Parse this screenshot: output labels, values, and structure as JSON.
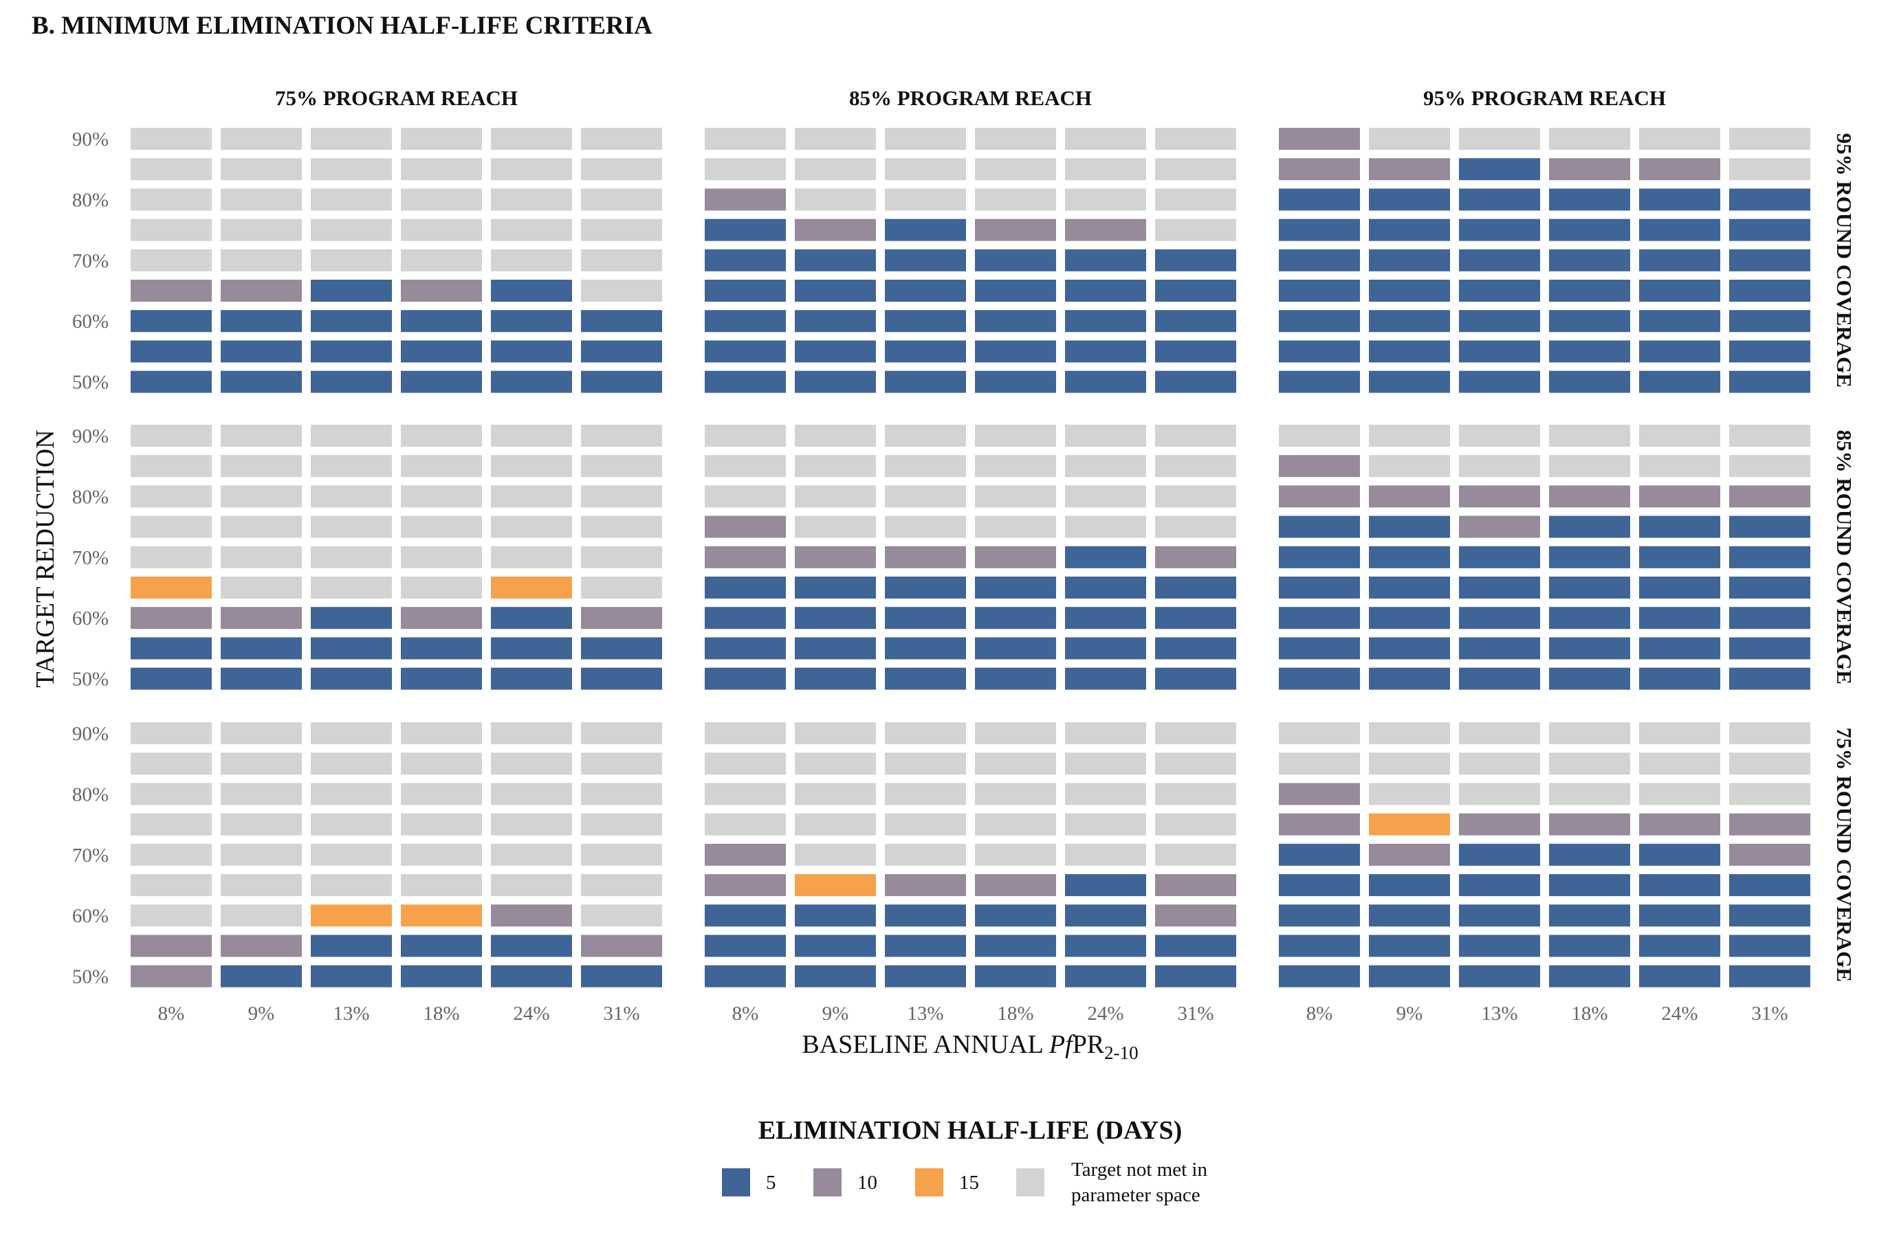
{
  "title": "B.  MINIMUM  ELIMINATION  HALF-LIFE  CRITERIA",
  "chart_data": {
    "type": "heatmap",
    "x_label": {
      "prefix": "BASELINE ANNUAL ",
      "italic": "Pf",
      "main": "PR",
      "sub": "2-10"
    },
    "y_label": "TARGET  REDUCTION",
    "x_categories": [
      "8%",
      "9%",
      "13%",
      "18%",
      "24%",
      "31%"
    ],
    "y_categories": [
      "50%",
      "55%",
      "60%",
      "65%",
      "70%",
      "75%",
      "80%",
      "85%",
      "90%"
    ],
    "y_tick_labels": [
      "50%",
      "",
      "60%",
      "",
      "70%",
      "",
      "80%",
      "",
      "90%"
    ],
    "facet_columns": [
      "75% PROGRAM REACH",
      "85% PROGRAM REACH",
      "95% PROGRAM REACH"
    ],
    "facet_rows": [
      "95% ROUND COVERAGE",
      "85% ROUND COVERAGE",
      "75% ROUND COVERAGE"
    ],
    "legend": {
      "title": "ELIMINATION  HALF-LIFE  (DAYS)",
      "items": [
        {
          "key": "5",
          "label": "5",
          "color": "#3f6597"
        },
        {
          "key": "10",
          "label": "10",
          "color": "#978a9a"
        },
        {
          "key": "15",
          "label": "15",
          "color": "#f6a24b"
        },
        {
          "key": "NA",
          "label_line1": "Target not met in",
          "label_line2": "parameter space",
          "color": "#d3d3d3"
        }
      ]
    },
    "cells_note": "cells[facet_row][facet_col][y_index from 50% to 90%][x_index]; value = minimum elimination half-life in days, 0 = target not met",
    "cells": [
      [
        [
          [
            5,
            5,
            5,
            5,
            5,
            5
          ],
          [
            5,
            5,
            5,
            5,
            5,
            5
          ],
          [
            5,
            5,
            5,
            5,
            5,
            5
          ],
          [
            10,
            10,
            5,
            10,
            5,
            0
          ],
          [
            0,
            0,
            0,
            0,
            0,
            0
          ],
          [
            0,
            0,
            0,
            0,
            0,
            0
          ],
          [
            0,
            0,
            0,
            0,
            0,
            0
          ],
          [
            0,
            0,
            0,
            0,
            0,
            0
          ],
          [
            0,
            0,
            0,
            0,
            0,
            0
          ]
        ],
        [
          [
            5,
            5,
            5,
            5,
            5,
            5
          ],
          [
            5,
            5,
            5,
            5,
            5,
            5
          ],
          [
            5,
            5,
            5,
            5,
            5,
            5
          ],
          [
            5,
            5,
            5,
            5,
            5,
            5
          ],
          [
            5,
            5,
            5,
            5,
            5,
            5
          ],
          [
            5,
            10,
            5,
            10,
            10,
            0
          ],
          [
            10,
            0,
            0,
            0,
            0,
            0
          ],
          [
            0,
            0,
            0,
            0,
            0,
            0
          ],
          [
            0,
            0,
            0,
            0,
            0,
            0
          ]
        ],
        [
          [
            5,
            5,
            5,
            5,
            5,
            5
          ],
          [
            5,
            5,
            5,
            5,
            5,
            5
          ],
          [
            5,
            5,
            5,
            5,
            5,
            5
          ],
          [
            5,
            5,
            5,
            5,
            5,
            5
          ],
          [
            5,
            5,
            5,
            5,
            5,
            5
          ],
          [
            5,
            5,
            5,
            5,
            5,
            5
          ],
          [
            5,
            5,
            5,
            5,
            5,
            5
          ],
          [
            10,
            10,
            5,
            10,
            10,
            0
          ],
          [
            10,
            0,
            0,
            0,
            0,
            0
          ]
        ]
      ],
      [
        [
          [
            5,
            5,
            5,
            5,
            5,
            5
          ],
          [
            5,
            5,
            5,
            5,
            5,
            5
          ],
          [
            10,
            10,
            5,
            10,
            5,
            10
          ],
          [
            15,
            0,
            0,
            0,
            15,
            0
          ],
          [
            0,
            0,
            0,
            0,
            0,
            0
          ],
          [
            0,
            0,
            0,
            0,
            0,
            0
          ],
          [
            0,
            0,
            0,
            0,
            0,
            0
          ],
          [
            0,
            0,
            0,
            0,
            0,
            0
          ],
          [
            0,
            0,
            0,
            0,
            0,
            0
          ]
        ],
        [
          [
            5,
            5,
            5,
            5,
            5,
            5
          ],
          [
            5,
            5,
            5,
            5,
            5,
            5
          ],
          [
            5,
            5,
            5,
            5,
            5,
            5
          ],
          [
            5,
            5,
            5,
            5,
            5,
            5
          ],
          [
            10,
            10,
            10,
            10,
            5,
            10
          ],
          [
            10,
            0,
            0,
            0,
            0,
            0
          ],
          [
            0,
            0,
            0,
            0,
            0,
            0
          ],
          [
            0,
            0,
            0,
            0,
            0,
            0
          ],
          [
            0,
            0,
            0,
            0,
            0,
            0
          ]
        ],
        [
          [
            5,
            5,
            5,
            5,
            5,
            5
          ],
          [
            5,
            5,
            5,
            5,
            5,
            5
          ],
          [
            5,
            5,
            5,
            5,
            5,
            5
          ],
          [
            5,
            5,
            5,
            5,
            5,
            5
          ],
          [
            5,
            5,
            5,
            5,
            5,
            5
          ],
          [
            5,
            5,
            10,
            5,
            5,
            5
          ],
          [
            10,
            10,
            10,
            10,
            10,
            10
          ],
          [
            10,
            0,
            0,
            0,
            0,
            0
          ],
          [
            0,
            0,
            0,
            0,
            0,
            0
          ]
        ]
      ],
      [
        [
          [
            10,
            5,
            5,
            5,
            5,
            5
          ],
          [
            10,
            10,
            5,
            5,
            5,
            10
          ],
          [
            0,
            0,
            15,
            15,
            10,
            0
          ],
          [
            0,
            0,
            0,
            0,
            0,
            0
          ],
          [
            0,
            0,
            0,
            0,
            0,
            0
          ],
          [
            0,
            0,
            0,
            0,
            0,
            0
          ],
          [
            0,
            0,
            0,
            0,
            0,
            0
          ],
          [
            0,
            0,
            0,
            0,
            0,
            0
          ],
          [
            0,
            0,
            0,
            0,
            0,
            0
          ]
        ],
        [
          [
            5,
            5,
            5,
            5,
            5,
            5
          ],
          [
            5,
            5,
            5,
            5,
            5,
            5
          ],
          [
            5,
            5,
            5,
            5,
            5,
            10
          ],
          [
            10,
            15,
            10,
            10,
            5,
            10
          ],
          [
            10,
            0,
            0,
            0,
            0,
            0
          ],
          [
            0,
            0,
            0,
            0,
            0,
            0
          ],
          [
            0,
            0,
            0,
            0,
            0,
            0
          ],
          [
            0,
            0,
            0,
            0,
            0,
            0
          ],
          [
            0,
            0,
            0,
            0,
            0,
            0
          ]
        ],
        [
          [
            5,
            5,
            5,
            5,
            5,
            5
          ],
          [
            5,
            5,
            5,
            5,
            5,
            5
          ],
          [
            5,
            5,
            5,
            5,
            5,
            5
          ],
          [
            5,
            5,
            5,
            5,
            5,
            5
          ],
          [
            5,
            10,
            5,
            5,
            5,
            10
          ],
          [
            10,
            15,
            10,
            10,
            10,
            10
          ],
          [
            10,
            0,
            0,
            0,
            0,
            0
          ],
          [
            0,
            0,
            0,
            0,
            0,
            0
          ],
          [
            0,
            0,
            0,
            0,
            0,
            0
          ]
        ]
      ]
    ]
  }
}
